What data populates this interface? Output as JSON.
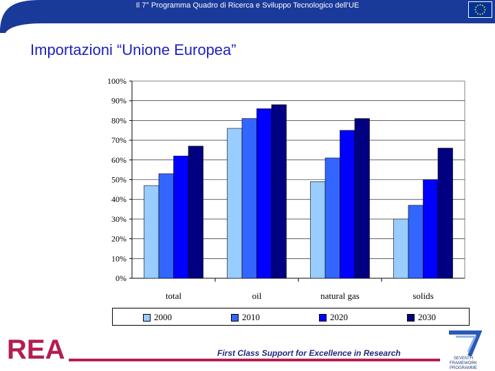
{
  "header": {
    "banner_text": "Il 7° Programma Quadro di Ricerca e Sviluppo Tecnologico dell’UE",
    "banner_color": "#1a3a9a",
    "flag_color": "#003399"
  },
  "slide": {
    "title": "Importazioni “Unione Europea”"
  },
  "footer": {
    "tagline": "First Class Support for Excellence in Research",
    "logo_left": "REA",
    "logo_right_caption": "SEVENTH FRAMEWORK PROGRAMME",
    "accent_color": "#b41e50"
  },
  "chart_data": {
    "type": "bar",
    "categories": [
      "total",
      "oil",
      "natural gas",
      "solids"
    ],
    "series": [
      {
        "name": "2000",
        "values": [
          47,
          76,
          49,
          30
        ],
        "color": "#99ccff"
      },
      {
        "name": "2010",
        "values": [
          53,
          81,
          61,
          37
        ],
        "color": "#3366ff"
      },
      {
        "name": "2020",
        "values": [
          62,
          86,
          75,
          50
        ],
        "color": "#0000ff"
      },
      {
        "name": "2030",
        "values": [
          67,
          88,
          81,
          66
        ],
        "color": "#000080"
      }
    ],
    "ylim": [
      0,
      100
    ],
    "yticks": [
      "0%",
      "10%",
      "20%",
      "30%",
      "40%",
      "50%",
      "60%",
      "70%",
      "80%",
      "90%",
      "100%"
    ],
    "grid": true,
    "legend": "bottom"
  }
}
